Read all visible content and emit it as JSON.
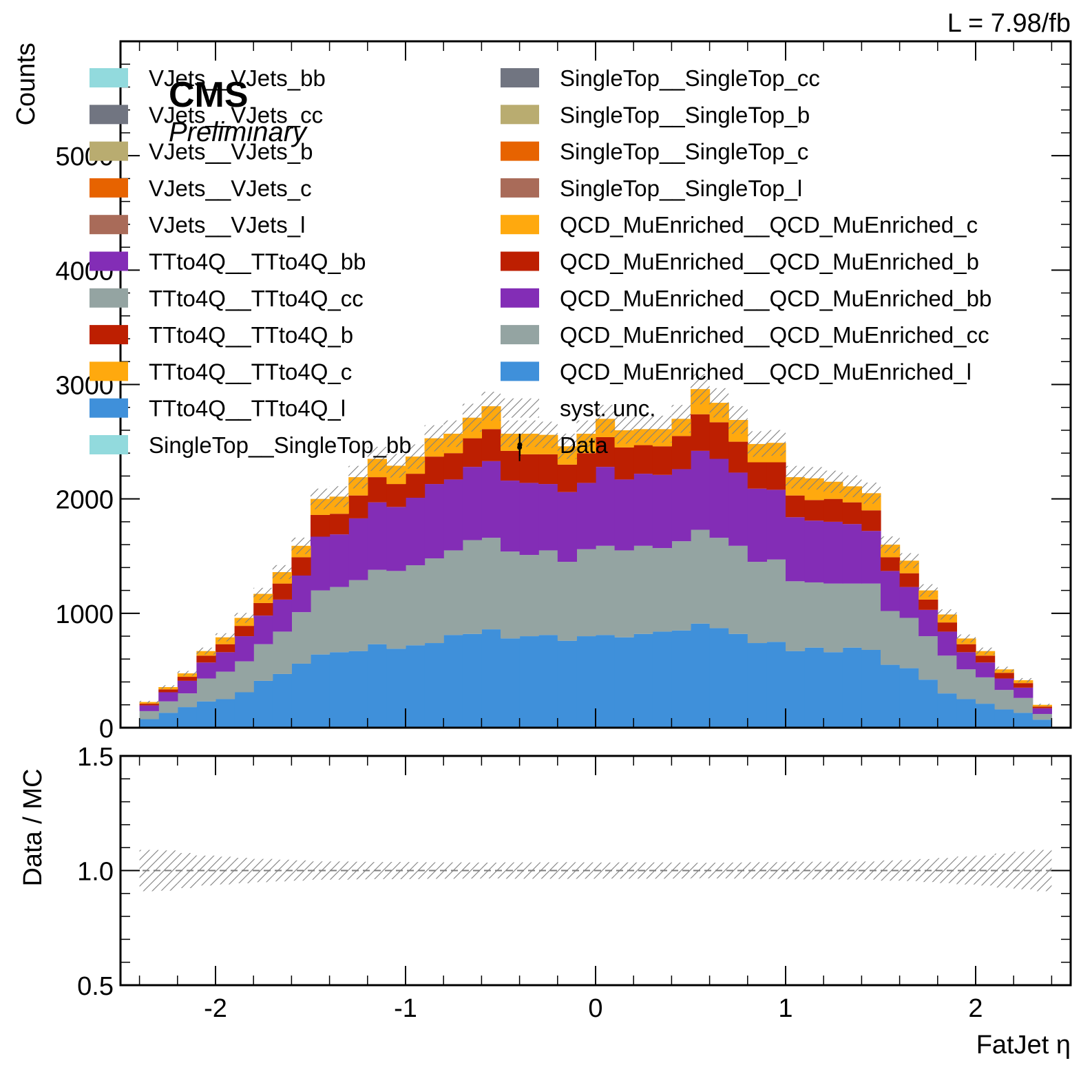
{
  "chart_data": {
    "type": "bar",
    "subtype": "stacked-histogram",
    "experiment": "CMS",
    "status": "Preliminary",
    "lumi": "L = 7.98/fb",
    "xlabel": "FatJet η",
    "ylabel": "Counts",
    "ratio_ylabel": "Data / MC",
    "xlim": [
      -2.5,
      2.5
    ],
    "ylim": [
      0,
      6000
    ],
    "ratio_ylim": [
      0.5,
      1.5
    ],
    "x_ticks": [
      "-2",
      "-1",
      "0",
      "1",
      "2"
    ],
    "y_ticks": [
      "0",
      "1000",
      "2000",
      "3000",
      "4000",
      "5000"
    ],
    "ratio_y_ticks": [
      "0.5",
      "1.0",
      "1.5"
    ],
    "grid": false,
    "legend_position": "top",
    "bin_edges": [
      -2.4,
      -2.3,
      -2.2,
      -2.1,
      -2.0,
      -1.9,
      -1.8,
      -1.7,
      -1.6,
      -1.5,
      -1.4,
      -1.3,
      -1.2,
      -1.1,
      -1.0,
      -0.9,
      -0.8,
      -0.7,
      -0.6,
      -0.5,
      -0.4,
      -0.3,
      -0.2,
      -0.1,
      0.0,
      0.1,
      0.2,
      0.3,
      0.4,
      0.5,
      0.6,
      0.7,
      0.8,
      0.9,
      1.0,
      1.1,
      1.2,
      1.3,
      1.4,
      1.5,
      1.6,
      1.7,
      1.8,
      1.9,
      2.0,
      2.1,
      2.2,
      2.3,
      2.4
    ],
    "series": [
      {
        "name": "QCD_MuEnriched__QCD_MuEnriched_l",
        "color": "#3f90da",
        "values": [
          75,
          130,
          180,
          230,
          250,
          310,
          410,
          470,
          560,
          640,
          660,
          670,
          730,
          690,
          720,
          740,
          810,
          820,
          860,
          780,
          800,
          810,
          760,
          800,
          810,
          790,
          820,
          840,
          850,
          910,
          870,
          820,
          740,
          750,
          670,
          700,
          660,
          700,
          680,
          550,
          520,
          420,
          300,
          250,
          210,
          160,
          130,
          70
        ]
      },
      {
        "name": "QCD_MuEnriched__QCD_MuEnriched_cc",
        "color": "#94a4a2",
        "values": [
          70,
          100,
          120,
          200,
          240,
          270,
          320,
          370,
          450,
          560,
          570,
          620,
          650,
          680,
          700,
          740,
          740,
          820,
          800,
          760,
          710,
          740,
          690,
          760,
          780,
          760,
          770,
          730,
          780,
          820,
          790,
          770,
          710,
          720,
          610,
          570,
          600,
          560,
          580,
          470,
          440,
          380,
          330,
          260,
          230,
          170,
          130,
          50
        ]
      },
      {
        "name": "QCD_MuEnriched__QCD_MuEnriched_bb",
        "color": "#832db6",
        "values": [
          50,
          80,
          110,
          140,
          170,
          220,
          250,
          280,
          320,
          470,
          460,
          540,
          590,
          560,
          590,
          650,
          620,
          640,
          670,
          620,
          630,
          580,
          610,
          580,
          690,
          620,
          630,
          640,
          630,
          690,
          690,
          640,
          640,
          610,
          560,
          540,
          540,
          520,
          460,
          350,
          270,
          230,
          210,
          150,
          130,
          100,
          90,
          50
        ]
      },
      {
        "name": "QCD_MuEnriched__QCD_MuEnriched_b",
        "color": "#bd1f01",
        "values": [
          15,
          25,
          35,
          60,
          70,
          90,
          110,
          140,
          160,
          190,
          180,
          200,
          220,
          200,
          210,
          240,
          230,
          250,
          280,
          260,
          250,
          260,
          240,
          260,
          260,
          280,
          250,
          250,
          290,
          320,
          320,
          270,
          230,
          240,
          190,
          180,
          200,
          190,
          180,
          120,
          120,
          90,
          80,
          70,
          60,
          50,
          40,
          15
        ]
      },
      {
        "name": "QCD_MuEnriched__QCD_MuEnriched_c",
        "color": "#ffa90e",
        "values": [
          15,
          20,
          30,
          40,
          60,
          70,
          80,
          100,
          100,
          140,
          150,
          160,
          160,
          160,
          150,
          160,
          170,
          180,
          200,
          150,
          180,
          170,
          160,
          170,
          160,
          150,
          140,
          150,
          150,
          220,
          170,
          190,
          160,
          170,
          160,
          190,
          150,
          140,
          150,
          110,
          110,
          80,
          70,
          50,
          40,
          30,
          25,
          15
        ]
      },
      {
        "name": "SingleTop__SingleTop_l",
        "color": "#a96b59",
        "values": []
      },
      {
        "name": "SingleTop__SingleTop_c",
        "color": "#e76300",
        "values": []
      },
      {
        "name": "SingleTop__SingleTop_b",
        "color": "#b9ac70",
        "values": []
      },
      {
        "name": "SingleTop__SingleTop_cc",
        "color": "#717581",
        "values": []
      },
      {
        "name": "SingleTop__SingleTop_bb",
        "color": "#92dadd",
        "values": []
      },
      {
        "name": "TTto4Q__TTto4Q_l",
        "color": "#3f90da",
        "values": []
      },
      {
        "name": "TTto4Q__TTto4Q_c",
        "color": "#ffa90e",
        "values": []
      },
      {
        "name": "TTto4Q__TTto4Q_b",
        "color": "#bd1f01",
        "values": []
      },
      {
        "name": "TTto4Q__TTto4Q_cc",
        "color": "#94a4a2",
        "values": []
      },
      {
        "name": "TTto4Q__TTto4Q_bb",
        "color": "#832db6",
        "values": []
      },
      {
        "name": "VJets__VJets_l",
        "color": "#a96b59",
        "values": []
      },
      {
        "name": "VJets__VJets_c",
        "color": "#e76300",
        "values": []
      },
      {
        "name": "VJets__VJets_b",
        "color": "#b9ac70",
        "values": []
      },
      {
        "name": "VJets__VJets_cc",
        "color": "#717581",
        "values": []
      },
      {
        "name": "VJets__VJets_bb",
        "color": "#92dadd",
        "values": []
      }
    ],
    "legend": {
      "left": [
        {
          "label": "VJets__VJets_bb",
          "color": "#92dadd"
        },
        {
          "label": "VJets__VJets_cc",
          "color": "#717581"
        },
        {
          "label": "VJets__VJets_b",
          "color": "#b9ac70"
        },
        {
          "label": "VJets__VJets_c",
          "color": "#e76300"
        },
        {
          "label": "VJets__VJets_l",
          "color": "#a96b59"
        },
        {
          "label": "TTto4Q__TTto4Q_bb",
          "color": "#832db6"
        },
        {
          "label": "TTto4Q__TTto4Q_cc",
          "color": "#94a4a2"
        },
        {
          "label": "TTto4Q__TTto4Q_b",
          "color": "#bd1f01"
        },
        {
          "label": "TTto4Q__TTto4Q_c",
          "color": "#ffa90e"
        },
        {
          "label": "TTto4Q__TTto4Q_l",
          "color": "#3f90da"
        },
        {
          "label": "SingleTop__SingleTop_bb",
          "color": "#92dadd"
        }
      ],
      "right": [
        {
          "label": "SingleTop__SingleTop_cc",
          "color": "#717581"
        },
        {
          "label": "SingleTop__SingleTop_b",
          "color": "#b9ac70"
        },
        {
          "label": "SingleTop__SingleTop_c",
          "color": "#e76300"
        },
        {
          "label": "SingleTop__SingleTop_l",
          "color": "#a96b59"
        },
        {
          "label": "QCD_MuEnriched__QCD_MuEnriched_c",
          "color": "#ffa90e"
        },
        {
          "label": "QCD_MuEnriched__QCD_MuEnriched_b",
          "color": "#bd1f01"
        },
        {
          "label": "QCD_MuEnriched__QCD_MuEnriched_bb",
          "color": "#832db6"
        },
        {
          "label": "QCD_MuEnriched__QCD_MuEnriched_cc",
          "color": "#94a4a2"
        },
        {
          "label": "QCD_MuEnriched__QCD_MuEnriched_l",
          "color": "#3f90da"
        },
        {
          "label": "syst. unc.",
          "kind": "hatch"
        },
        {
          "label": "Data",
          "kind": "marker"
        }
      ]
    },
    "syst_unc_fraction": 0.045,
    "data": {
      "x": [
        -0.4
      ],
      "y": [
        2450
      ],
      "yerr": [
        120
      ]
    },
    "ratio": {
      "reference": 1.0
    }
  }
}
